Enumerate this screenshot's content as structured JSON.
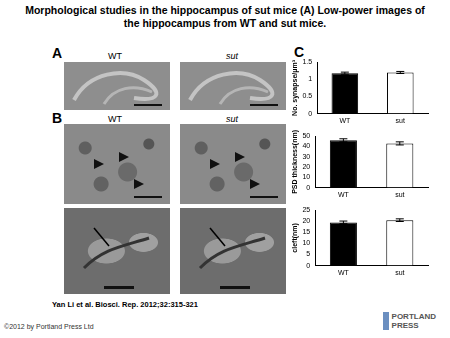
{
  "header": {
    "title": "Morphological studies in the hippocampus of sut mice (A) Low-power images of the hippocampus from WT and sut mice."
  },
  "panels": [
    {
      "label": "A",
      "columns": [
        "WT",
        "sut"
      ]
    },
    {
      "label": "B",
      "columns": [
        "WT",
        "sut"
      ]
    },
    {
      "label": "C"
    }
  ],
  "chart_data": [
    {
      "type": "bar",
      "categories": [
        "WT",
        "sut"
      ],
      "values": [
        1.18,
        1.2
      ],
      "errors": [
        0.03,
        0.03
      ],
      "colors": [
        "#000000",
        "#ffffff"
      ],
      "ylabel": "No. synapse/μm³",
      "ylim": [
        0,
        1.5
      ],
      "yticks": [
        0,
        0.5,
        1,
        1.5
      ],
      "grid": false
    },
    {
      "type": "bar",
      "categories": [
        "WT",
        "sut"
      ],
      "values": [
        46,
        43
      ],
      "errors": [
        1.5,
        1.5
      ],
      "colors": [
        "#000000",
        "#ffffff"
      ],
      "ylabel": "PSD thickness(nm)",
      "ylim": [
        0,
        50
      ],
      "yticks": [
        0,
        10,
        20,
        30,
        40,
        50
      ],
      "grid": false
    },
    {
      "type": "bar",
      "categories": [
        "WT",
        "sut"
      ],
      "values": [
        19.5,
        20.5
      ],
      "errors": [
        0.6,
        0.6
      ],
      "colors": [
        "#000000",
        "#ffffff"
      ],
      "ylabel": "cleft(nm)",
      "ylim": [
        0,
        25
      ],
      "yticks": [
        0,
        5,
        10,
        15,
        20,
        25
      ],
      "grid": false
    }
  ],
  "footer": {
    "citation": "Yan Li et al. Biosci. Rep. 2012;32:315-321",
    "copyright": "©2012 by Portland Press Ltd",
    "logo": [
      "PORTLAND",
      "PRESS"
    ]
  }
}
